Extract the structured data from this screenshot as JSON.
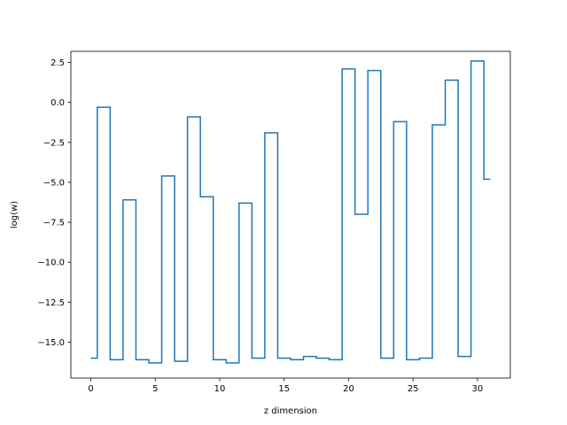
{
  "chart_data": {
    "type": "line",
    "drawstyle": "steps-mid",
    "title": "",
    "xlabel": "z dimension",
    "ylabel": "log(w)",
    "xlim": [
      -1.55,
      32.55
    ],
    "ylim": [
      -17.25,
      3.2
    ],
    "xticks": [
      0,
      5,
      10,
      15,
      20,
      25,
      30
    ],
    "yticks": [
      2.5,
      0.0,
      -2.5,
      -5.0,
      -7.5,
      -10.0,
      -12.5,
      -15.0
    ],
    "xtick_labels": [
      "0",
      "5",
      "10",
      "15",
      "20",
      "25",
      "30"
    ],
    "ytick_labels": [
      "2.5",
      "0.0",
      "−2.5",
      "−5.0",
      "−7.5",
      "−10.0",
      "−12.5",
      "−15.0"
    ],
    "grid": false,
    "series": [
      {
        "color": "#1f77b4",
        "x": [
          0,
          1,
          2,
          3,
          4,
          5,
          6,
          7,
          8,
          9,
          10,
          11,
          12,
          13,
          14,
          15,
          16,
          17,
          18,
          19,
          20,
          21,
          22,
          23,
          24,
          25,
          26,
          27,
          28,
          29,
          30,
          31
        ],
        "y": [
          -16.0,
          -0.3,
          -16.1,
          -6.1,
          -16.1,
          -16.3,
          -4.6,
          -16.2,
          -0.9,
          -5.9,
          -16.1,
          -16.3,
          -6.3,
          -16.0,
          -1.9,
          -16.0,
          -16.1,
          -15.9,
          -16.0,
          -16.1,
          2.1,
          -7.0,
          2.0,
          -16.0,
          -1.2,
          -16.1,
          -16.0,
          -1.4,
          1.4,
          -15.9,
          2.6,
          -4.8
        ]
      }
    ]
  }
}
